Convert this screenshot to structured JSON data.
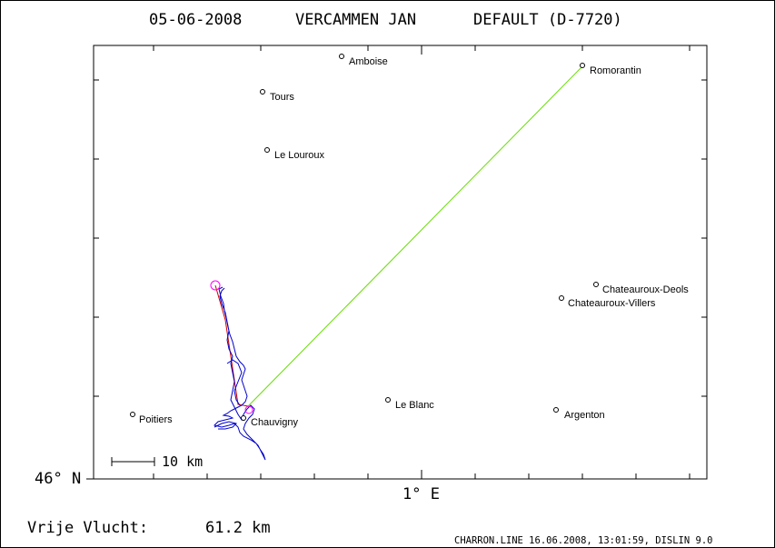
{
  "header": {
    "title_date": "05-06-2008",
    "title_pilot": "VERCAMMEN JAN",
    "title_glider": "DEFAULT (D-7720)"
  },
  "axes": {
    "y_label": "46° N",
    "x_label": "1° E"
  },
  "scale_bar": {
    "label": "10 km"
  },
  "footer": {
    "flight_label": "Vrije Vlucht:",
    "flight_distance": "61.2 km",
    "credit": "CHARRON.LINE 16.06.2008, 13:01:59, DISLIN 9.0"
  },
  "cities": [
    {
      "name": "Amboise"
    },
    {
      "name": "Romorantin"
    },
    {
      "name": "Tours"
    },
    {
      "name": "Le Louroux"
    },
    {
      "name": "Chateauroux-Deols"
    },
    {
      "name": "Chateauroux-Villers"
    },
    {
      "name": "Le Blanc"
    },
    {
      "name": "Argenton"
    },
    {
      "name": "Poitiers"
    },
    {
      "name": "Chauvigny"
    }
  ],
  "colors": {
    "frame": "#000000",
    "track": "#0000cc",
    "task_line": "#cc0000",
    "free_flight_line": "#66dd00",
    "start_marker": "#ff00ff"
  }
}
